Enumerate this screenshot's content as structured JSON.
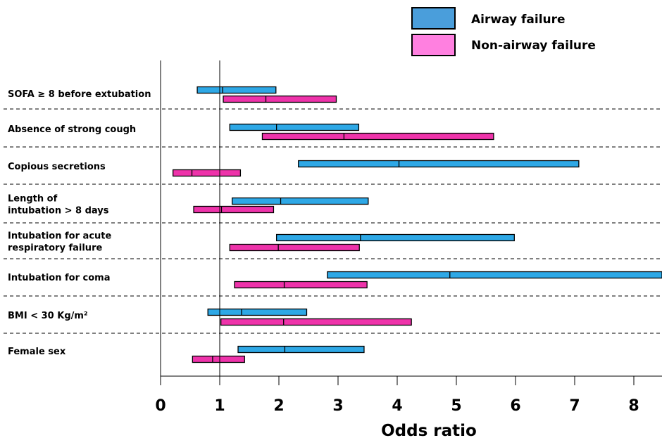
{
  "chart_data": {
    "type": "forest",
    "xlabel": "Odds ratio",
    "xlim": [
      0,
      8.5
    ],
    "xticks": [
      0,
      1,
      2,
      3,
      4,
      5,
      6,
      7,
      8
    ],
    "reference_line": 1,
    "legend": {
      "position": "top-right",
      "entries": [
        {
          "label": "Airway failure",
          "color": "#2ea8e6"
        },
        {
          "label": "Non-airway failure",
          "color": "#ee33aa"
        }
      ]
    },
    "categories": [
      {
        "lines": [
          "SOFA ≥ 8 before extubation"
        ]
      },
      {
        "lines": [
          "Absence of strong cough"
        ]
      },
      {
        "lines": [
          "Copious secretions"
        ]
      },
      {
        "lines": [
          "Length of",
          "intubation > 8 days"
        ]
      },
      {
        "lines": [
          "Intubation for acute",
          "respiratory failure"
        ]
      },
      {
        "lines": [
          "Intubation for coma"
        ]
      },
      {
        "lines": [
          "BMI < 30 Kg/m²"
        ]
      },
      {
        "lines": [
          "Female sex"
        ]
      }
    ],
    "series": [
      {
        "name": "Airway failure",
        "color": "#2ea8e6",
        "values": [
          {
            "low": 0.62,
            "or": 1.05,
            "high": 1.95
          },
          {
            "low": 1.17,
            "or": 1.96,
            "high": 3.35
          },
          {
            "low": 2.33,
            "or": 4.03,
            "high": 7.07
          },
          {
            "low": 1.21,
            "or": 2.03,
            "high": 3.51
          },
          {
            "low": 1.96,
            "or": 3.38,
            "high": 5.98
          },
          {
            "low": 2.82,
            "or": 4.89,
            "high": 8.5
          },
          {
            "low": 0.8,
            "or": 1.37,
            "high": 2.47
          },
          {
            "low": 1.31,
            "or": 2.1,
            "high": 3.44
          }
        ]
      },
      {
        "name": "Non-airway failure",
        "color": "#ee33aa",
        "values": [
          {
            "low": 1.06,
            "or": 1.78,
            "high": 2.97
          },
          {
            "low": 1.72,
            "or": 3.1,
            "high": 5.63
          },
          {
            "low": 0.21,
            "or": 0.53,
            "high": 1.35
          },
          {
            "low": 0.56,
            "or": 1.03,
            "high": 1.91
          },
          {
            "low": 1.17,
            "or": 1.99,
            "high": 3.36
          },
          {
            "low": 1.25,
            "or": 2.09,
            "high": 3.49
          },
          {
            "low": 1.02,
            "or": 2.08,
            "high": 4.24
          },
          {
            "low": 0.54,
            "or": 0.88,
            "high": 1.42
          }
        ]
      }
    ]
  }
}
